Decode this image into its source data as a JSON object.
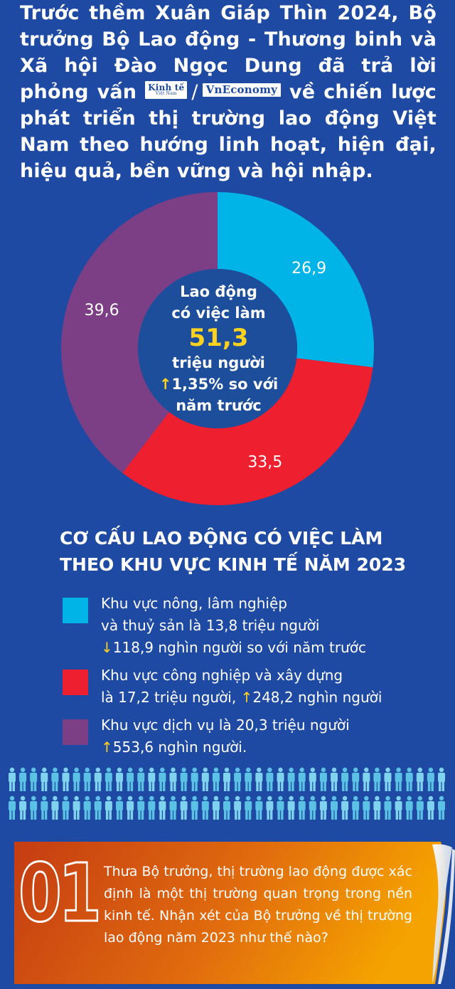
{
  "intro": {
    "part1": "Trước thềm Xuân Giáp Thìn 2024, Bộ trưởng Bộ Lao động - Thương binh và Xã hội Đào Ngọc Dung đã trả lời phỏng vấn",
    "logo_kinhte": "Kinh tế",
    "logo_kinhte_sub": "Việt Nam",
    "slash": "/",
    "logo_vneconomy": "VnEconomy",
    "part2": "về chiến lược phát triển thị trường lao động Việt Nam theo hướng linh hoạt, hiện đại, hiệu quả, bền vững và hội nhập."
  },
  "colors": {
    "background": "#1f4aa3",
    "blue": "#00b4e8",
    "red": "#ee1f2e",
    "purple": "#7c3f86",
    "yellow": "#ffd21f",
    "center": "#1c4e9b"
  },
  "center": {
    "line1": "Lao động",
    "line2": "có việc làm",
    "value": "51,3",
    "unit": "triệu người",
    "arrow": "↑",
    "change": "1,35% so với",
    "line6": "năm trước"
  },
  "chart_data": {
    "type": "pie",
    "slices": [
      {
        "label": "Khu vực nông, lâm nghiệp và thuỷ sản",
        "value": 26.9,
        "display": "26,9",
        "color": "#00b4e8"
      },
      {
        "label": "Khu vực công nghiệp và xây dựng",
        "value": 33.5,
        "display": "33,5",
        "color": "#ee1f2e"
      },
      {
        "label": "Khu vực dịch vụ",
        "value": 39.6,
        "display": "39,6",
        "color": "#7c3f86"
      }
    ],
    "title": "CƠ CẤU LAO ĐỘNG CÓ VIỆC LÀM THEO KHU VỰC KINH TẾ NĂM 2023"
  },
  "section": {
    "title_line1": "CƠ CẤU LAO ĐỘNG CÓ VIỆC LÀM",
    "title_line2": "THEO KHU VỰC KINH TẾ NĂM 2023"
  },
  "legend": [
    {
      "text1": "Khu vực nông, lâm nghiệp",
      "text2": "và thuỷ sản là 13,8 triệu người",
      "arrow": "↓",
      "text3": "118,9 nghìn người so với năm trước",
      "color": "#00b4e8"
    },
    {
      "text1": "Khu vực công nghiệp và xây dựng",
      "text2": "là 17,2 triệu người, ",
      "arrow": "↑",
      "text3": "248,2 nghìn người",
      "color": "#ee1f2e"
    },
    {
      "text1": "Khu vực dịch vụ là 20,3 triệu người",
      "arrow": "↑",
      "text3": "553,6 nghìn người.",
      "color": "#7c3f86"
    }
  ],
  "question": {
    "number": "01",
    "text": "Thưa Bộ trưởng, thị trường lao động được xác định là một thị trường quan trọng trong nền kinh tế. Nhận xét của Bộ trưởng về thị trường lao động năm 2023 như thế nào?"
  }
}
